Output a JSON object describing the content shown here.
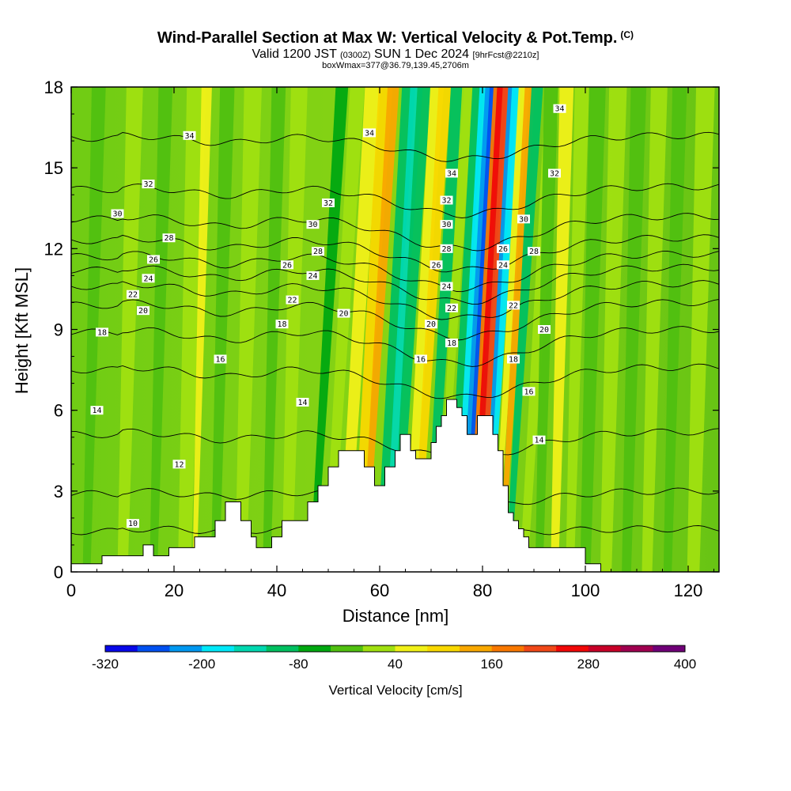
{
  "title": "Wind-Parallel Section at Max W: Vertical Velocity & Pot.Temp.",
  "title_mark": "(C)",
  "subtitle_valid": "Valid 1200 JST",
  "subtitle_utc": "(0300Z)",
  "subtitle_date": "SUN 1 Dec 2024",
  "subtitle_fcst": "[9hrFcst@2210z]",
  "note": "boxWmax=377@36.79,139.45,2706m",
  "chart_data": {
    "type": "heatmap",
    "xlabel": "Distance [nm]",
    "ylabel": "Height [Kft MSL]",
    "colorbar_label": "Vertical Velocity [cm/s]",
    "xlim": [
      0,
      126
    ],
    "ylim": [
      0,
      18
    ],
    "x_ticks": [
      "0",
      "20",
      "40",
      "60",
      "80",
      "100",
      "120"
    ],
    "y_ticks": [
      "0",
      "3",
      "6",
      "9",
      "12",
      "15",
      "18"
    ],
    "colorbar_ticks": [
      "-320",
      "-200",
      "-80",
      "40",
      "160",
      "280",
      "400"
    ],
    "colorbar_colors": [
      "#0808e8",
      "#0050f0",
      "#0098f0",
      "#00e8f8",
      "#00d8b0",
      "#00c060",
      "#00a810",
      "#50c010",
      "#a0e010",
      "#f0f018",
      "#f8d800",
      "#f8a800",
      "#f87800",
      "#f04818",
      "#f00808",
      "#c80028",
      "#a00050",
      "#700078"
    ],
    "terrain": [
      [
        0,
        0.3
      ],
      [
        6,
        0.3
      ],
      [
        6,
        0.6
      ],
      [
        14,
        0.6
      ],
      [
        14,
        1
      ],
      [
        16,
        1
      ],
      [
        16,
        0.6
      ],
      [
        19,
        0.6
      ],
      [
        19,
        0.9
      ],
      [
        24,
        0.9
      ],
      [
        24,
        1.3
      ],
      [
        28,
        1.3
      ],
      [
        28,
        1.9
      ],
      [
        30,
        1.9
      ],
      [
        30,
        2.6
      ],
      [
        33,
        2.6
      ],
      [
        33,
        1.9
      ],
      [
        35,
        1.9
      ],
      [
        35,
        1.3
      ],
      [
        36,
        1.3
      ],
      [
        36,
        0.9
      ],
      [
        39,
        0.9
      ],
      [
        39,
        1.3
      ],
      [
        41,
        1.3
      ],
      [
        41,
        1.9
      ],
      [
        46,
        1.9
      ],
      [
        46,
        2.6
      ],
      [
        48,
        2.6
      ],
      [
        48,
        3.2
      ],
      [
        50,
        3.2
      ],
      [
        50,
        3.9
      ],
      [
        52,
        3.9
      ],
      [
        52,
        4.5
      ],
      [
        57,
        4.5
      ],
      [
        57,
        3.9
      ],
      [
        59,
        3.9
      ],
      [
        59,
        3.2
      ],
      [
        61,
        3.2
      ],
      [
        61,
        3.9
      ],
      [
        63,
        3.9
      ],
      [
        63,
        4.5
      ],
      [
        64,
        4.5
      ],
      [
        64,
        5.1
      ],
      [
        66,
        5.1
      ],
      [
        66,
        4.5
      ],
      [
        67,
        4.5
      ],
      [
        67,
        4.2
      ],
      [
        70,
        4.2
      ],
      [
        70,
        4.8
      ],
      [
        71,
        4.8
      ],
      [
        71,
        5.4
      ],
      [
        72,
        5.4
      ],
      [
        72,
        5.8
      ],
      [
        73,
        5.8
      ],
      [
        73,
        6.4
      ],
      [
        75,
        6.4
      ],
      [
        75,
        6.1
      ],
      [
        76,
        6.1
      ],
      [
        76,
        5.8
      ],
      [
        77,
        5.8
      ],
      [
        77,
        5.1
      ],
      [
        79,
        5.1
      ],
      [
        79,
        5.8
      ],
      [
        82,
        5.8
      ],
      [
        82,
        5.1
      ],
      [
        83,
        5.1
      ],
      [
        83,
        4.5
      ],
      [
        84,
        4.5
      ],
      [
        84,
        3.2
      ],
      [
        85,
        3.2
      ],
      [
        85,
        2.2
      ],
      [
        86,
        2.2
      ],
      [
        86,
        1.9
      ],
      [
        87,
        1.9
      ],
      [
        87,
        1.6
      ],
      [
        88,
        1.6
      ],
      [
        88,
        1.3
      ],
      [
        89,
        1.3
      ],
      [
        89,
        0.9
      ],
      [
        100,
        0.9
      ],
      [
        100,
        0.3
      ],
      [
        103,
        0.3
      ],
      [
        103,
        0
      ],
      [
        126,
        0
      ]
    ],
    "theta_isentropes": [
      {
        "level": 10,
        "base": 1.6,
        "pert": 0.3
      },
      {
        "level": 12,
        "base": 3.0,
        "pert": 0.8
      },
      {
        "level": 14,
        "base": 5.2,
        "pert": 1.2
      },
      {
        "level": 16,
        "base": 7.6,
        "pert": 1.4
      },
      {
        "level": 18,
        "base": 9.0,
        "pert": 1.6
      },
      {
        "level": 20,
        "base": 10.0,
        "pert": 1.6
      },
      {
        "level": 22,
        "base": 10.7,
        "pert": 1.6
      },
      {
        "level": 24,
        "base": 11.3,
        "pert": 1.6
      },
      {
        "level": 26,
        "base": 11.8,
        "pert": 1.6
      },
      {
        "level": 28,
        "base": 12.4,
        "pert": 1.5
      },
      {
        "level": 30,
        "base": 13.2,
        "pert": 1.5
      },
      {
        "level": 32,
        "base": 14.3,
        "pert": 1.3
      },
      {
        "level": 34,
        "base": 16.2,
        "pert": 1.1
      }
    ],
    "contour_labels": [
      {
        "text": "10",
        "x": 12,
        "y": 1.8
      },
      {
        "text": "12",
        "x": 21,
        "y": 4.0
      },
      {
        "text": "14",
        "x": 5,
        "y": 6.0
      },
      {
        "text": "14",
        "x": 45,
        "y": 6.3
      },
      {
        "text": "14",
        "x": 91,
        "y": 4.9
      },
      {
        "text": "16",
        "x": 29,
        "y": 7.9
      },
      {
        "text": "16",
        "x": 68,
        "y": 7.9
      },
      {
        "text": "16",
        "x": 89,
        "y": 6.7
      },
      {
        "text": "18",
        "x": 6,
        "y": 8.9
      },
      {
        "text": "18",
        "x": 41,
        "y": 9.2
      },
      {
        "text": "18",
        "x": 74,
        "y": 8.5
      },
      {
        "text": "18",
        "x": 86,
        "y": 7.9
      },
      {
        "text": "20",
        "x": 14,
        "y": 9.7
      },
      {
        "text": "20",
        "x": 53,
        "y": 9.6
      },
      {
        "text": "20",
        "x": 70,
        "y": 9.2
      },
      {
        "text": "20",
        "x": 92,
        "y": 9.0
      },
      {
        "text": "22",
        "x": 12,
        "y": 10.3
      },
      {
        "text": "22",
        "x": 43,
        "y": 10.1
      },
      {
        "text": "22",
        "x": 74,
        "y": 9.8
      },
      {
        "text": "22",
        "x": 86,
        "y": 9.9
      },
      {
        "text": "24",
        "x": 15,
        "y": 10.9
      },
      {
        "text": "24",
        "x": 47,
        "y": 11.0
      },
      {
        "text": "24",
        "x": 73,
        "y": 10.6
      },
      {
        "text": "24",
        "x": 84,
        "y": 11.4
      },
      {
        "text": "26",
        "x": 16,
        "y": 11.6
      },
      {
        "text": "26",
        "x": 42,
        "y": 11.4
      },
      {
        "text": "26",
        "x": 71,
        "y": 11.4
      },
      {
        "text": "26",
        "x": 84,
        "y": 12.0
      },
      {
        "text": "28",
        "x": 19,
        "y": 12.4
      },
      {
        "text": "28",
        "x": 48,
        "y": 11.9
      },
      {
        "text": "28",
        "x": 73,
        "y": 12.0
      },
      {
        "text": "28",
        "x": 90,
        "y": 11.9
      },
      {
        "text": "30",
        "x": 9,
        "y": 13.3
      },
      {
        "text": "30",
        "x": 47,
        "y": 12.9
      },
      {
        "text": "30",
        "x": 73,
        "y": 12.9
      },
      {
        "text": "30",
        "x": 88,
        "y": 13.1
      },
      {
        "text": "32",
        "x": 15,
        "y": 14.4
      },
      {
        "text": "32",
        "x": 50,
        "y": 13.7
      },
      {
        "text": "32",
        "x": 73,
        "y": 13.8
      },
      {
        "text": "32",
        "x": 94,
        "y": 14.8
      },
      {
        "text": "34",
        "x": 23,
        "y": 16.2
      },
      {
        "text": "34",
        "x": 58,
        "y": 16.3
      },
      {
        "text": "34",
        "x": 74,
        "y": 14.8
      },
      {
        "text": "34",
        "x": 95,
        "y": 17.2
      }
    ]
  }
}
